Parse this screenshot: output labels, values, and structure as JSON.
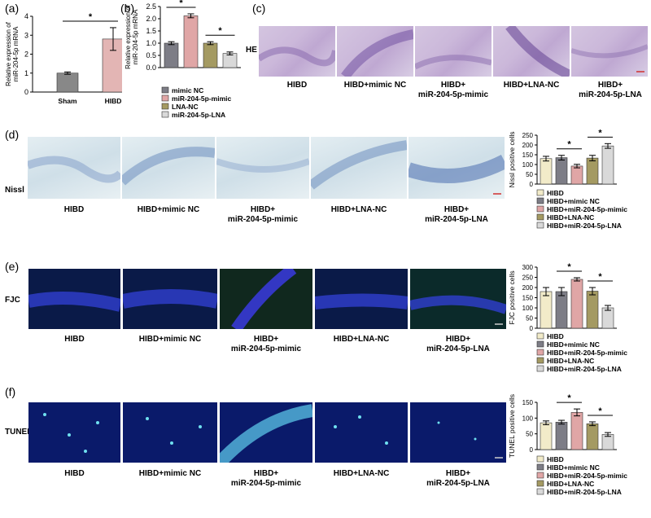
{
  "panels": {
    "a": "(a)",
    "b": "(b)",
    "c": "(c)",
    "d": "(d)",
    "e": "(e)",
    "f": "(f)"
  },
  "row_labels": {
    "he": "HE",
    "nissl": "Nissl",
    "fjc": "FJC",
    "tunel": "TUNEL"
  },
  "captions": {
    "c": [
      [
        "HIBD",
        ""
      ],
      [
        "HIBD+mimic NC",
        ""
      ],
      [
        "HIBD+",
        "miR-204-5p-mimic"
      ],
      [
        "HIBD+LNA-NC",
        ""
      ],
      [
        "HIBD+",
        "miR-204-5p-LNA"
      ]
    ],
    "d": [
      [
        "HIBD",
        ""
      ],
      [
        "HIBD+mimic NC",
        ""
      ],
      [
        "HIBD+",
        "miR-204-5p-mimic"
      ],
      [
        "HIBD+LNA-NC",
        ""
      ],
      [
        "HIBD+",
        "miR-204-5p-LNA"
      ]
    ],
    "e": [
      [
        "HIBD",
        ""
      ],
      [
        "HIBD+mimic NC",
        ""
      ],
      [
        "HIBD+",
        "miR-204-5p-mimic"
      ],
      [
        "HIBD+LNA-NC",
        ""
      ],
      [
        "HIBD+",
        "miR-204-5p-LNA"
      ]
    ],
    "f": [
      [
        "HIBD",
        ""
      ],
      [
        "HIBD+mimic NC",
        ""
      ],
      [
        "HIBD+",
        "miR-204-5p-mimic"
      ],
      [
        "HIBD+LNA-NC",
        ""
      ],
      [
        "HIBD+",
        "miR-204-5p-LNA"
      ]
    ]
  },
  "colors": {
    "c1": "#f2ebc9",
    "c2": "#7d7d86",
    "c3": "#e0a6a6",
    "c4": "#a49a62",
    "c5": "#d9d9d9",
    "grey": "#888888",
    "pink": "#e3b5b4"
  },
  "chart_data": [
    {
      "id": "a",
      "type": "bar",
      "categories": [
        "Sham",
        "HIBD"
      ],
      "values": [
        1.0,
        2.8
      ],
      "errors": [
        0.06,
        0.6
      ],
      "ylabel": "Relative expression of miR-204-5p mRNA",
      "ylim": [
        0,
        4
      ],
      "yticks": [
        0,
        1,
        2,
        3,
        4
      ],
      "sig": [
        [
          0,
          1
        ]
      ]
    },
    {
      "id": "b",
      "type": "bar",
      "categories": [
        "mimic NC",
        "miR-204-5p-mimic",
        "LNA-NC",
        "miR-204-5p-LNA"
      ],
      "values": [
        1.0,
        2.12,
        1.0,
        0.58
      ],
      "errors": [
        0.06,
        0.08,
        0.06,
        0.06
      ],
      "ylabel": "Relative expression of miR-204-5p mRNA",
      "ylim": [
        0,
        2.5
      ],
      "yticks": [
        0.0,
        0.5,
        1.0,
        1.5,
        2.0,
        2.5
      ],
      "sig": [
        [
          0,
          1
        ],
        [
          2,
          3
        ]
      ],
      "legend": [
        "mimic NC",
        "miR-204-5p-mimic",
        "LNA-NC",
        "miR-204-5p-LNA"
      ]
    },
    {
      "id": "d",
      "type": "bar",
      "categories": [
        "HIBD",
        "HIBD+mimic NC",
        "HIBD+miR-204-5p-mimic",
        "HIBD+LNA-NC",
        "HIBD+miR-204-5p-LNA"
      ],
      "values": [
        130,
        135,
        92,
        133,
        195
      ],
      "errors": [
        12,
        12,
        9,
        14,
        12
      ],
      "ylabel": "Nissl positive cells",
      "ylim": [
        0,
        250
      ],
      "yticks": [
        0,
        50,
        100,
        150,
        200,
        250
      ],
      "sig": [
        [
          1,
          2
        ],
        [
          3,
          4
        ]
      ],
      "legend": [
        "HIBD",
        "HIBD+mimic NC",
        "HIBD+miR-204-5p-mimic",
        "HIBD+LNA-NC",
        "HIBD+miR-204-5p-LNA"
      ]
    },
    {
      "id": "e",
      "type": "bar",
      "categories": [
        "HIBD",
        "HIBD+mimic NC",
        "HIBD+miR-204-5p-mimic",
        "HIBD+LNA-NC",
        "HIBD+miR-204-5p-LNA"
      ],
      "values": [
        180,
        180,
        240,
        182,
        100
      ],
      "errors": [
        20,
        20,
        8,
        18,
        12
      ],
      "ylabel": "FJC positive cells",
      "ylim": [
        0,
        300
      ],
      "yticks": [
        0,
        50,
        100,
        150,
        200,
        250,
        300
      ],
      "sig": [
        [
          1,
          2
        ],
        [
          3,
          4
        ]
      ],
      "legend": [
        "HIBD",
        "HIBD+mimic NC",
        "HIBD+miR-204-5p-mimic",
        "HIBD+LNA-NC",
        "HIBD+miR-204-5p-LNA"
      ]
    },
    {
      "id": "f",
      "type": "bar",
      "categories": [
        "HIBD",
        "HIBD+mimic NC",
        "HIBD+miR-204-5p-mimic",
        "HIBD+LNA-NC",
        "HIBD+miR-204-5p-LNA"
      ],
      "values": [
        85,
        87,
        118,
        82,
        48
      ],
      "errors": [
        6,
        6,
        11,
        6,
        6
      ],
      "ylabel": "TUNEL positive cells",
      "ylim": [
        0,
        150
      ],
      "yticks": [
        0,
        50,
        100,
        150
      ],
      "sig": [
        [
          1,
          2
        ],
        [
          3,
          4
        ]
      ],
      "legend": [
        "HIBD",
        "HIBD+mimic NC",
        "HIBD+miR-204-5p-mimic",
        "HIBD+LNA-NC",
        "HIBD+miR-204-5p-LNA"
      ]
    }
  ]
}
